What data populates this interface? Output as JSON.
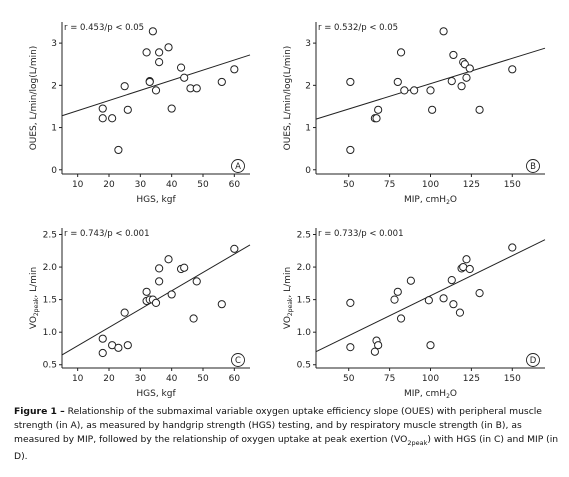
{
  "chart_data": [
    {
      "type": "scatter",
      "panel": "A",
      "annotation": "r = 0.453/p < 0.05",
      "xlabel": "HGS, kgf",
      "ylabel": "OUES, L/min/log(L/min)",
      "xlim": [
        5,
        65
      ],
      "ylim": [
        -0.1,
        3.5
      ],
      "xticks": [
        "10",
        "20",
        "30",
        "40",
        "50",
        "60"
      ],
      "yticks": [
        "0",
        "1",
        "2",
        "3"
      ],
      "x": [
        18,
        18,
        21,
        23,
        25,
        26,
        32,
        33,
        33,
        34,
        35,
        36,
        36,
        39,
        40,
        43,
        44,
        46,
        48,
        56,
        60
      ],
      "y": [
        1.45,
        1.22,
        1.22,
        0.47,
        1.98,
        1.42,
        2.78,
        2.1,
        2.08,
        3.28,
        1.88,
        2.78,
        2.55,
        2.9,
        1.45,
        2.42,
        2.18,
        1.93,
        1.93,
        2.08,
        2.38
      ],
      "fit_line": {
        "x": [
          5,
          65
        ],
        "y": [
          1.28,
          2.72
        ]
      }
    },
    {
      "type": "scatter",
      "panel": "B",
      "annotation": "r = 0.532/p < 0.05",
      "xlabel": "MIP, cmH",
      "xlabel_sub": "2",
      "xlabel_tail": "O",
      "ylabel": "OUES, L/min/log(L/min)",
      "xlim": [
        30,
        170
      ],
      "ylim": [
        -0.1,
        3.5
      ],
      "xticks": [
        "50",
        "75",
        "100",
        "125",
        "150"
      ],
      "yticks": [
        "0",
        "1",
        "2",
        "3"
      ],
      "x": [
        51,
        51,
        66,
        67,
        68,
        80,
        82,
        84,
        90,
        100,
        101,
        108,
        113,
        114,
        119,
        120,
        121,
        122,
        124,
        130,
        150
      ],
      "y": [
        0.47,
        2.08,
        1.22,
        1.22,
        1.42,
        2.08,
        2.78,
        1.88,
        1.88,
        1.88,
        1.42,
        3.28,
        2.1,
        2.72,
        1.98,
        2.55,
        2.5,
        2.18,
        2.4,
        1.42,
        2.38
      ],
      "fit_line": {
        "x": [
          30,
          170
        ],
        "y": [
          1.2,
          2.88
        ]
      }
    },
    {
      "type": "scatter",
      "panel": "C",
      "annotation": "r = 0.743/p < 0.001",
      "xlabel": "HGS, kgf",
      "ylabel": "VO",
      "ylabel_sub": "2peak",
      "ylabel_tail": ", L/min",
      "xlim": [
        5,
        65
      ],
      "ylim": [
        0.45,
        2.6
      ],
      "xticks": [
        "10",
        "20",
        "30",
        "40",
        "50",
        "60"
      ],
      "yticks": [
        "0.5",
        "1.0",
        "1.5",
        "2.0",
        "2.5"
      ],
      "x": [
        18,
        18,
        21,
        23,
        25,
        26,
        32,
        32,
        33,
        34,
        35,
        36,
        36,
        39,
        40,
        43,
        44,
        47,
        48,
        56,
        60
      ],
      "y": [
        0.68,
        0.9,
        0.8,
        0.76,
        1.3,
        0.8,
        1.62,
        1.48,
        1.5,
        1.5,
        1.45,
        1.78,
        1.98,
        2.12,
        1.58,
        1.97,
        1.99,
        1.21,
        1.78,
        1.43,
        2.28
      ],
      "fit_line": {
        "x": [
          5,
          65
        ],
        "y": [
          0.65,
          2.34
        ]
      }
    },
    {
      "type": "scatter",
      "panel": "D",
      "annotation": "r = 0.733/p < 0.001",
      "xlabel": "MIP, cmH",
      "xlabel_sub": "2",
      "xlabel_tail": "O",
      "ylabel": "VO",
      "ylabel_sub": "2peak",
      "ylabel_tail": ", L/min",
      "xlim": [
        30,
        170
      ],
      "ylim": [
        0.45,
        2.6
      ],
      "xticks": [
        "50",
        "75",
        "100",
        "125",
        "150"
      ],
      "yticks": [
        "0.5",
        "1.0",
        "1.5",
        "2.0",
        "2.5"
      ],
      "x": [
        51,
        51,
        66,
        67,
        68,
        78,
        80,
        82,
        88,
        99,
        100,
        108,
        113,
        114,
        118,
        119,
        120,
        122,
        124,
        130,
        150
      ],
      "y": [
        0.77,
        1.45,
        0.7,
        0.87,
        0.8,
        1.5,
        1.62,
        1.21,
        1.79,
        1.49,
        0.8,
        1.52,
        1.8,
        1.43,
        1.3,
        1.98,
        2.0,
        2.12,
        1.97,
        1.6,
        2.3
      ],
      "fit_line": {
        "x": [
          30,
          170
        ],
        "y": [
          0.7,
          2.42
        ]
      }
    }
  ],
  "caption": {
    "label": "Figure 1 –",
    "part1": " Relationship of the submaximal variable oxygen uptake efficiency slope (OUES) with peripheral muscle strength (in A), as measured by handgrip strength (HGS) testing, and by respiratory muscle strength (in B), as measured by MIP, followed by the relationship of oxygen uptake at peak exertion (VO",
    "sub": "2peak",
    "part2": ") with HGS (in C) and MIP (in D)."
  }
}
